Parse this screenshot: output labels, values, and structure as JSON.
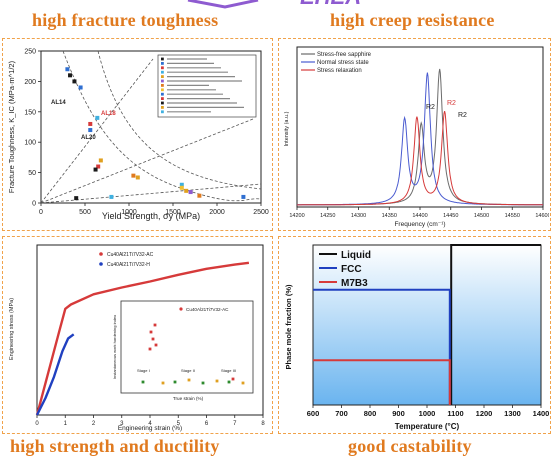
{
  "banner_text": "EHEA",
  "titles": {
    "fracture": "high fracture toughness",
    "creep": "high creep resistance",
    "strength": "high strength and ductility",
    "castability": "good castability"
  },
  "colors": {
    "accent": "#e07a1f",
    "banner": "#8e5bd0",
    "dashed_border": "#f0a24a"
  },
  "panel_fracture": {
    "ylabel": "Fracture Toughness, K_IC (MPa·m^1/2)",
    "xlabel": "Yield Strength, σy (MPa)",
    "x_ticks": [
      "0",
      "500",
      "1000",
      "1500",
      "2000",
      "2500"
    ],
    "y_ticks": [
      "0",
      "50",
      "100",
      "150",
      "200",
      "250"
    ],
    "annotations": [
      "AL14",
      "AL18",
      "AL20"
    ],
    "chart_data": {
      "type": "scatter",
      "xlim": [
        0,
        2500
      ],
      "ylim": [
        0,
        250
      ],
      "points": [
        {
          "x": 300,
          "y": 220,
          "color": "#2f6fd1"
        },
        {
          "x": 330,
          "y": 210,
          "color": "#1a1a1a"
        },
        {
          "x": 380,
          "y": 200,
          "color": "#1a1a1a"
        },
        {
          "x": 450,
          "y": 190,
          "color": "#2f6fd1"
        },
        {
          "x": 560,
          "y": 130,
          "color": "#d63a3a"
        },
        {
          "x": 640,
          "y": 140,
          "color": "#3fb0e0"
        },
        {
          "x": 560,
          "y": 120,
          "color": "#2f6fd1"
        },
        {
          "x": 680,
          "y": 70,
          "color": "#e0a020"
        },
        {
          "x": 650,
          "y": 60,
          "color": "#d63a3a"
        },
        {
          "x": 620,
          "y": 55,
          "color": "#1a1a1a"
        },
        {
          "x": 1050,
          "y": 45,
          "color": "#e07a1f"
        },
        {
          "x": 1100,
          "y": 42,
          "color": "#e0a020"
        },
        {
          "x": 1600,
          "y": 30,
          "color": "#3fb0e0"
        },
        {
          "x": 1650,
          "y": 20,
          "color": "#e0a020"
        },
        {
          "x": 1700,
          "y": 18,
          "color": "#8e5bd0"
        },
        {
          "x": 1600,
          "y": 25,
          "color": "#f0c030"
        },
        {
          "x": 1800,
          "y": 12,
          "color": "#e07a1f"
        },
        {
          "x": 2300,
          "y": 10,
          "color": "#2f6fd1"
        },
        {
          "x": 400,
          "y": 8,
          "color": "#1a1a1a"
        },
        {
          "x": 800,
          "y": 10,
          "color": "#3fb0e0"
        }
      ]
    }
  },
  "panel_creep": {
    "ylabel": "Intensity (a.u.)",
    "xlabel": "Frequency (cm⁻¹)",
    "x_ticks": [
      "14200",
      "14250",
      "14300",
      "14350",
      "14400",
      "14450",
      "14500",
      "14550",
      "14600"
    ],
    "legend": [
      "Stress-free sapphire",
      "Normal stress state",
      "Stress relaxation"
    ],
    "peak_labels": [
      "R2",
      "R2",
      "R2"
    ],
    "chart_data": {
      "type": "line",
      "xlim": [
        14200,
        14600
      ],
      "series": [
        {
          "name": "Stress-free sapphire",
          "color": "#6b6b6b",
          "peaks": [
            [
              14402,
              0.55
            ],
            [
              14432,
              0.95
            ]
          ]
        },
        {
          "name": "Normal stress state",
          "color": "#4a5bd0",
          "peaks": [
            [
              14375,
              0.6
            ],
            [
              14412,
              0.93
            ]
          ]
        },
        {
          "name": "Stress relaxation",
          "color": "#d63a3a",
          "peaks": [
            [
              14395,
              0.62
            ],
            [
              14440,
              0.66
            ]
          ]
        }
      ]
    }
  },
  "panel_strength": {
    "ylabel": "Engineering stress (MPa)",
    "xlabel": "Engineering strain (%)",
    "x_ticks": [
      "0",
      "1",
      "2",
      "3",
      "4",
      "5",
      "6",
      "7",
      "8"
    ],
    "legend": [
      "Cu40Al21Ti7V32-AC",
      "Cu40Al21Ti7V32-H"
    ],
    "inset": {
      "ylabel": "Instantaneous work hardening index",
      "xlabel": "True strain (%)",
      "legend": "Cu40Al21Ti7V32-AC",
      "stage_labels": [
        "Stage I",
        "Stage II",
        "Stage III"
      ]
    },
    "chart_data": {
      "type": "line",
      "xlim": [
        0,
        8
      ],
      "series": [
        {
          "name": "Cu40Al21Ti7V32-AC",
          "color": "#d63a3a",
          "x": [
            0,
            0.4,
            0.8,
            1.0,
            1.2,
            2,
            3,
            4,
            5,
            6,
            7,
            7.5
          ],
          "y": [
            0,
            500,
            1000,
            1250,
            1300,
            1420,
            1500,
            1570,
            1650,
            1720,
            1770,
            1790
          ]
        },
        {
          "name": "Cu40Al21Ti7V32-H",
          "color": "#2040c0",
          "x": [
            0,
            0.3,
            0.6,
            0.9,
            1.1,
            1.3
          ],
          "y": [
            0,
            200,
            450,
            750,
            900,
            950
          ]
        }
      ]
    }
  },
  "panel_cast": {
    "ylabel": "Phase mole fraction (%)",
    "xlabel": "Temperature (°C)",
    "x_ticks": [
      "600",
      "700",
      "800",
      "900",
      "1000",
      "1100",
      "1200",
      "1300",
      "1400"
    ],
    "legend": [
      "Liquid",
      "FCC",
      "M7B3"
    ],
    "chart_data": {
      "type": "line",
      "xlim": [
        600,
        1400
      ],
      "ylim": [
        0,
        100
      ],
      "series": [
        {
          "name": "Liquid",
          "color": "#111111",
          "x": [
            1085,
            1085,
            1400
          ],
          "y": [
            0,
            100,
            100
          ]
        },
        {
          "name": "FCC",
          "color": "#2040c0",
          "x": [
            600,
            1080,
            1080
          ],
          "y": [
            72,
            72,
            0
          ]
        },
        {
          "name": "M7B3",
          "color": "#d63a3a",
          "x": [
            600,
            1080,
            1080
          ],
          "y": [
            28,
            28,
            0
          ]
        }
      ]
    }
  }
}
